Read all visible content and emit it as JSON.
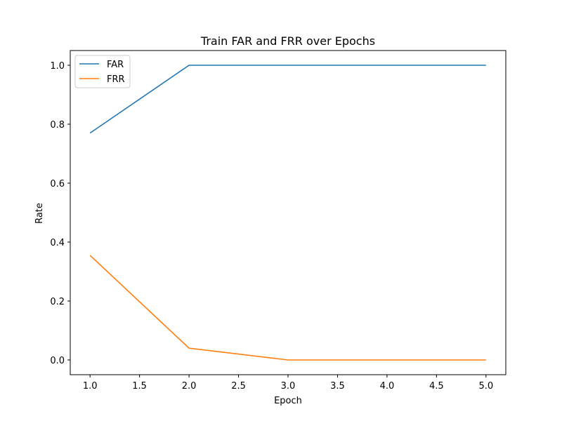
{
  "chart_data": {
    "type": "line",
    "title": "Train FAR and FRR over Epochs",
    "xlabel": "Epoch",
    "ylabel": "Rate",
    "xlim": [
      0.8,
      5.2
    ],
    "ylim": [
      -0.05,
      1.05
    ],
    "xticks": [
      1.0,
      1.5,
      2.0,
      2.5,
      3.0,
      3.5,
      4.0,
      4.5,
      5.0
    ],
    "xtick_labels": [
      "1.0",
      "1.5",
      "2.0",
      "2.5",
      "3.0",
      "3.5",
      "4.0",
      "4.5",
      "5.0"
    ],
    "yticks": [
      0.0,
      0.2,
      0.4,
      0.6,
      0.8,
      1.0
    ],
    "ytick_labels": [
      "0.0",
      "0.2",
      "0.4",
      "0.6",
      "0.8",
      "1.0"
    ],
    "grid": false,
    "legend": "top-left",
    "x": [
      1,
      2,
      3,
      4,
      5
    ],
    "series": [
      {
        "name": "FAR",
        "color": "#1f77b4",
        "values": [
          0.77,
          1.0,
          1.0,
          1.0,
          1.0
        ]
      },
      {
        "name": "FRR",
        "color": "#ff7f0e",
        "values": [
          0.355,
          0.04,
          0.0,
          0.0,
          0.0
        ]
      }
    ]
  }
}
